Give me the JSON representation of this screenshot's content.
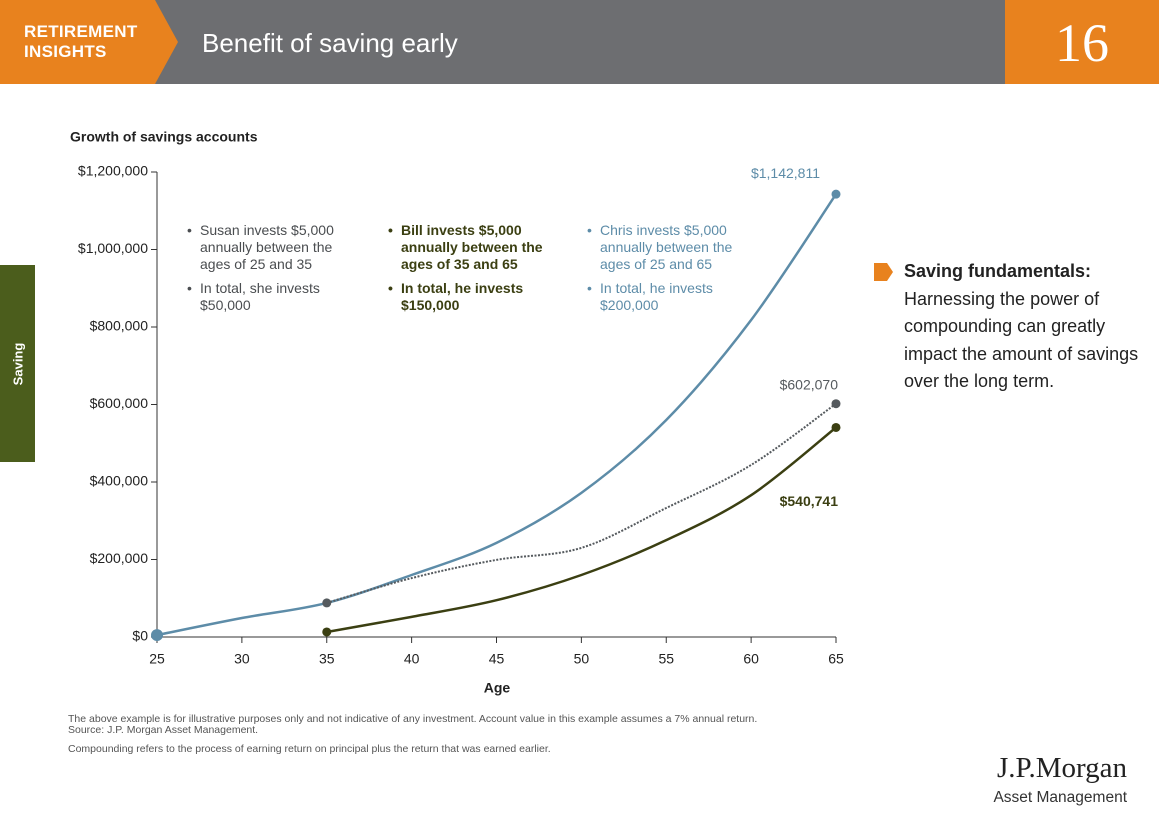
{
  "header": {
    "section": [
      "RETIREMENT",
      "INSIGHTS"
    ],
    "title": "Benefit of saving early",
    "page": "16"
  },
  "side_tab": "Saving",
  "sidebar": {
    "title": "Saving fundamentals:",
    "text": "Harnessing the power of compounding can greatly impact the amount of savings over the long term."
  },
  "footnotes": [
    "The above example is for illustrative purposes only and not indicative of any investment. Account value in this example assumes a 7% annual return.",
    "Source: J.P. Morgan Asset Management.",
    "Compounding refers to the process of earning return on principal plus the return that was earned earlier."
  ],
  "logo": {
    "name": "J.P.Morgan",
    "subtitle": "Asset Management"
  },
  "chart_data": {
    "type": "line",
    "title": "Growth of savings accounts",
    "x_label": "Age",
    "x": [
      25,
      30,
      35,
      40,
      45,
      50,
      55,
      60,
      65
    ],
    "xlim": [
      25,
      65
    ],
    "xticks": [
      25,
      30,
      35,
      40,
      45,
      50,
      55,
      60,
      65
    ],
    "ylim": [
      0,
      1200000
    ],
    "yticks": [
      {
        "value": 0,
        "label": "$0"
      },
      {
        "value": 200000,
        "label": "$200,000"
      },
      {
        "value": 400000,
        "label": "$400,000"
      },
      {
        "value": 600000,
        "label": "$600,000"
      },
      {
        "value": 800000,
        "label": "$800,000"
      },
      {
        "value": 1000000,
        "label": "$1,000,000"
      },
      {
        "value": 1200000,
        "label": "$1,200,000"
      }
    ],
    "series": [
      {
        "name": "Chris",
        "color": "#5d8ca8",
        "style": "solid",
        "values": [
          5000,
          49000,
          88000,
          160000,
          243000,
          372000,
          560000,
          818000,
          1142811
        ],
        "value_labels": [
          null,
          null,
          null,
          null,
          null,
          null,
          null,
          null,
          "$1,142,811"
        ]
      },
      {
        "name": "Susan",
        "color": "#555a5e",
        "style": "dotted",
        "values": [
          null,
          null,
          88000,
          152000,
          199000,
          230000,
          333000,
          444000,
          602070
        ],
        "value_labels": [
          null,
          null,
          null,
          null,
          null,
          null,
          null,
          null,
          "$602,070"
        ]
      },
      {
        "name": "Bill",
        "color": "#3b3f12",
        "style": "solid",
        "values": [
          null,
          null,
          13000,
          52000,
          95000,
          160000,
          250000,
          366000,
          540741
        ],
        "value_labels": [
          null,
          null,
          null,
          null,
          null,
          null,
          null,
          null,
          "$540,741"
        ]
      }
    ],
    "annotations": [
      {
        "color": "#4a4d50",
        "bullets": [
          "Susan invests $5,000 annually between the ages of 25 and 35",
          "In total, she invests $50,000"
        ]
      },
      {
        "color": "#3b3f12",
        "bullets": [
          "Bill invests $5,000 annually between the ages of 35 and 65",
          "In total, he invests $150,000"
        ]
      },
      {
        "color": "#5d8ca8",
        "bullets": [
          "Chris invests $5,000 annually between the ages of 25 and 65",
          "In total, he invests $200,000"
        ]
      }
    ]
  }
}
